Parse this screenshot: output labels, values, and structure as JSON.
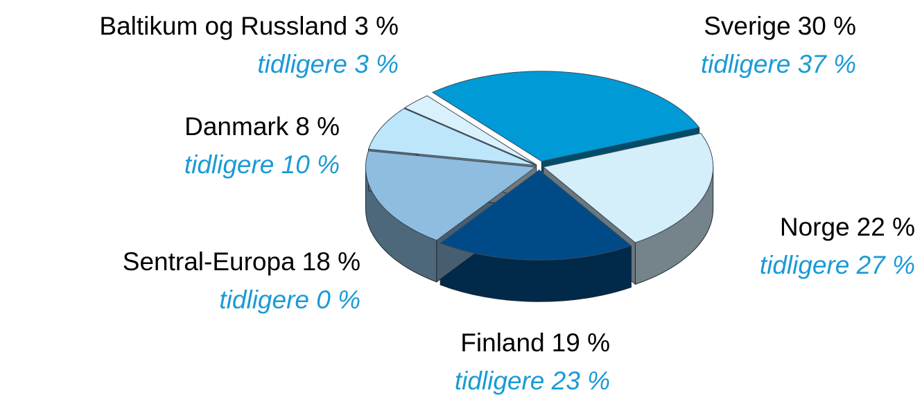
{
  "chart_data": {
    "type": "pie3d",
    "categories": [
      "Sverige",
      "Norge",
      "Finland",
      "Sentral-Europa",
      "Danmark",
      "Baltikum og Russland"
    ],
    "values": [
      30,
      22,
      19,
      18,
      8,
      3
    ],
    "value_labels": [
      "30 %",
      "22 %",
      "19 %",
      "18 %",
      "8 %",
      "3 %"
    ],
    "annotations": [
      "tidligere 37 %",
      "tidligere 27 %",
      "tidligere 23 %",
      "tidligere 0 %",
      "tidligere 10 %",
      "tidligere 3 %"
    ],
    "colors": [
      "#009ad6",
      "#d4eefa",
      "#004b87",
      "#8ebde0",
      "#bde6fa",
      "#d9f1fc"
    ]
  }
}
